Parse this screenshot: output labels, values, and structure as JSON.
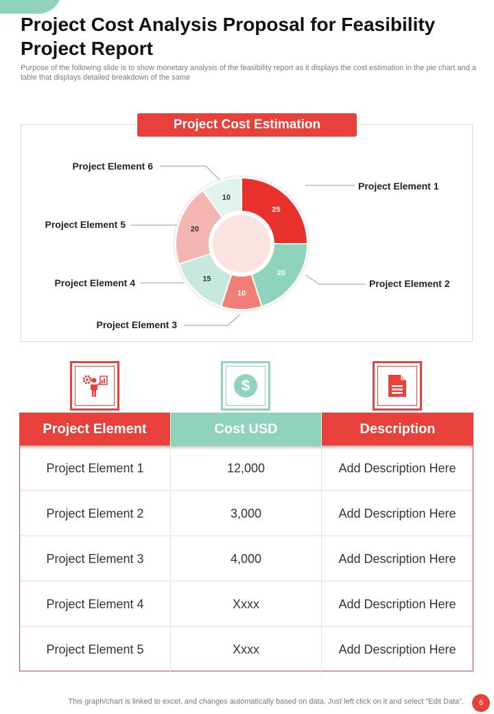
{
  "header": {
    "title": "Project Cost Analysis Proposal for Feasibility Project Report",
    "subtitle": "Purpose of the following slide is to show monetary analysis of the feasibility report as it displays the cost estimation in the pie chart and a table that displays detailed breakdown of the same"
  },
  "colors": {
    "accent_red": "#e8403a",
    "accent_teal": "#8fd3bd"
  },
  "chart_data": {
    "type": "pie",
    "title": "Project Cost Estimation",
    "donut": true,
    "slices": [
      {
        "label": "Project Element 1",
        "value": 25,
        "color": "#e8312d"
      },
      {
        "label": "Project Element 2",
        "value": 20,
        "color": "#8fd3bd"
      },
      {
        "label": "Project Element 3",
        "value": 10,
        "color": "#f27f77"
      },
      {
        "label": "Project Element 4",
        "value": 15,
        "color": "#c6e8dd"
      },
      {
        "label": "Project Element 5",
        "value": 20,
        "color": "#f5b5b1"
      },
      {
        "label": "Project Element 6",
        "value": 10,
        "color": "#e0f3ed"
      }
    ],
    "center_color": "#fbe3e1"
  },
  "icons": [
    {
      "name": "presenter-gears-icon",
      "color": "#e8403a"
    },
    {
      "name": "dollar-coin-icon",
      "color": "#8fd3bd"
    },
    {
      "name": "document-icon",
      "color": "#e8403a"
    }
  ],
  "table": {
    "headers": [
      {
        "label": "Project Element",
        "color": "#e8403a"
      },
      {
        "label": "Cost  USD",
        "color": "#8fd3bd"
      },
      {
        "label": "Description",
        "color": "#e8403a"
      }
    ],
    "rows": [
      [
        "Project Element 1",
        "12,000",
        "Add Description Here"
      ],
      [
        "Project Element 2",
        "3,000",
        "Add Description Here"
      ],
      [
        "Project Element 3",
        "4,000",
        "Add Description Here"
      ],
      [
        "Project Element 4",
        "Xxxx",
        "Add Description Here"
      ],
      [
        "Project Element 5",
        "Xxxx",
        "Add Description Here"
      ]
    ]
  },
  "footer": {
    "note": "This graph/chart is linked to excel,  and changes automatically based on data. Just left click on it and select “Edit Data”.",
    "page_number": "6"
  }
}
